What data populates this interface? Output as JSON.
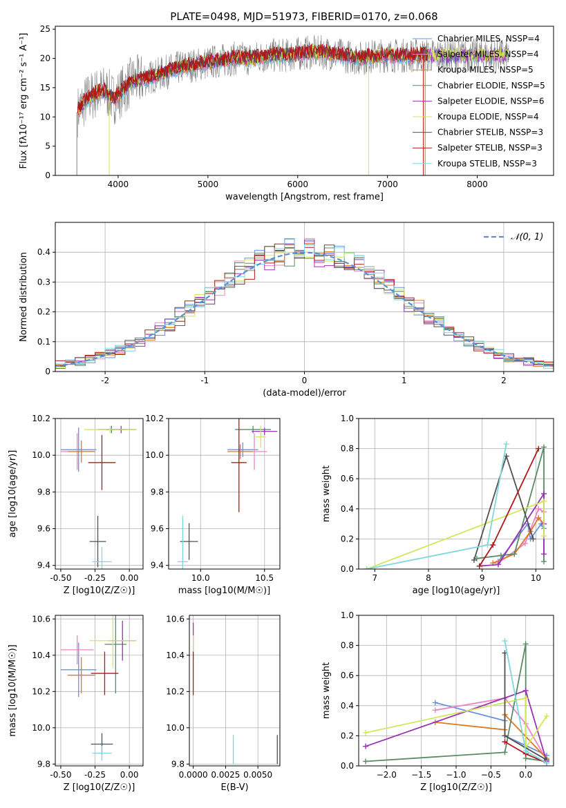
{
  "colors": {
    "chabrier_miles": "#6a8fe0",
    "salpeter_miles": "#ee82c8",
    "kroupa_miles": "#e07820",
    "chabrier_elodie": "#5a8a65",
    "salpeter_elodie": "#9a30b4",
    "kroupa_elodie": "#d2e65a",
    "chabrier_stelib": "#505050",
    "salpeter_stelib": "#b01818",
    "kroupa_stelib": "#7ed6e0",
    "gaussian": "#5b8ed6",
    "spectrum": "#808080"
  },
  "chart_data": [
    {
      "type": "line",
      "title": "PLATE=0498, MJD=51973, FIBERID=0170, z=0.068",
      "xlabel": "wavelength [Angstrom, rest frame]",
      "ylabel": "Flux [fλ10⁻¹⁷ erg cm⁻² s⁻¹ A⁻¹]",
      "xlim": [
        3300,
        8850
      ],
      "ylim": [
        0,
        25.5
      ],
      "xticks": [
        4000,
        5000,
        6000,
        7000,
        8000
      ],
      "yticks": [
        0,
        5,
        10,
        15,
        20,
        25
      ],
      "legend_position": "right",
      "series": [
        {
          "name": "Chabrier MILES, NSSP=4",
          "key": "chabrier_miles"
        },
        {
          "name": "Salpeter MILES, NSSP=4",
          "key": "salpeter_miles"
        },
        {
          "name": "Kroupa MILES, NSSP=5",
          "key": "kroupa_miles"
        },
        {
          "name": "Chabrier ELODIE, NSSP=5",
          "key": "chabrier_elodie"
        },
        {
          "name": "Salpeter ELODIE, NSSP=6",
          "key": "salpeter_elodie"
        },
        {
          "name": "Kroupa ELODIE, NSSP=4",
          "key": "kroupa_elodie"
        },
        {
          "name": "Chabrier STELIB, NSSP=3",
          "key": "chabrier_stelib"
        },
        {
          "name": "Salpeter STELIB, NSSP=3",
          "key": "salpeter_stelib"
        },
        {
          "name": "Kroupa STELIB, NSSP=3",
          "key": "kroupa_stelib"
        }
      ],
      "continuum": {
        "x": [
          3550,
          3650,
          3750,
          3850,
          3950,
          4050,
          4150,
          4300,
          4500,
          4700,
          4900,
          5100,
          5300,
          5500,
          5700,
          5900,
          6100,
          6300,
          6500,
          6700,
          6900,
          7100,
          7300,
          7500
        ],
        "y": [
          11,
          13,
          14,
          14.5,
          13,
          14.5,
          16,
          16.5,
          17.5,
          18.5,
          19,
          19.5,
          20,
          20,
          20.5,
          20.5,
          21,
          21,
          20.5,
          20,
          20.5,
          20.5,
          20.5,
          20.5
        ]
      }
    },
    {
      "type": "histogram",
      "xlabel": "(data-model)/error",
      "ylabel": "Normed distribution",
      "xlim": [
        -2.5,
        2.5
      ],
      "ylim": [
        0,
        0.5
      ],
      "xticks": [
        -2,
        -1,
        0,
        1,
        2
      ],
      "yticks": [
        0.0,
        0.1,
        0.2,
        0.3,
        0.4
      ],
      "legend_label": "𝒩(0, 1)",
      "bin_width": 0.1
    },
    {
      "type": "errorbar",
      "xlabel": "Z [log10(Z/Z☉)]",
      "ylabel": "age  [log10(age/yr)]",
      "xlim": [
        -0.54,
        0.1
      ],
      "ylim": [
        9.38,
        10.2
      ],
      "xticks": [
        "-0.50",
        "-0.25",
        "0.00"
      ],
      "yticks": [
        "9.4",
        "9.6",
        "9.8",
        "10.0",
        "10.2"
      ],
      "points": [
        {
          "key": "chabrier_miles",
          "x": -0.37,
          "xerr": 0.13,
          "y": 10.03,
          "yerr": 0.12
        },
        {
          "key": "salpeter_miles",
          "x": -0.38,
          "xerr": 0.12,
          "y": 10.02,
          "yerr": 0.1
        },
        {
          "key": "kroupa_miles",
          "x": -0.35,
          "xerr": 0.1,
          "y": 10.02,
          "yerr": 0.06
        },
        {
          "key": "chabrier_elodie",
          "x": -0.13,
          "xerr": 0.1,
          "y": 10.14,
          "yerr": 0.02
        },
        {
          "key": "salpeter_elodie",
          "x": -0.06,
          "xerr": 0.11,
          "y": 10.14,
          "yerr": 0.02
        },
        {
          "key": "kroupa_elodie",
          "x": -0.14,
          "xerr": 0.19,
          "y": 10.14,
          "yerr": 0.02
        },
        {
          "key": "chabrier_stelib",
          "x": -0.23,
          "xerr": 0.06,
          "y": 9.53,
          "yerr": 0.14
        },
        {
          "key": "salpeter_stelib",
          "x": -0.2,
          "xerr": 0.1,
          "y": 9.96,
          "yerr": 0.15
        },
        {
          "key": "kroupa_stelib",
          "x": -0.2,
          "xerr": 0.07,
          "y": 9.42,
          "yerr": 0.08
        }
      ]
    },
    {
      "type": "errorbar",
      "xlabel": "mass [log10(M/M☉)]",
      "xlim": [
        9.75,
        10.62
      ],
      "ylim": [
        9.38,
        10.2
      ],
      "xticks": [
        "10.0",
        "10.5"
      ],
      "yticks": [
        "9.4",
        "9.6",
        "9.8",
        "10.0",
        "10.2"
      ],
      "points": [
        {
          "key": "chabrier_miles",
          "x": 10.33,
          "xerr": 0.12,
          "y": 10.03,
          "yerr": 0.04
        },
        {
          "key": "salpeter_miles",
          "x": 10.42,
          "xerr": 0.1,
          "y": 10.02,
          "yerr": 0.1
        },
        {
          "key": "kroupa_miles",
          "x": 10.31,
          "xerr": 0.1,
          "y": 10.02,
          "yerr": 0.04
        },
        {
          "key": "chabrier_elodie",
          "x": 10.41,
          "xerr": 0.14,
          "y": 10.14,
          "yerr": 0.02
        },
        {
          "key": "salpeter_elodie",
          "x": 10.5,
          "xerr": 0.1,
          "y": 10.13,
          "yerr": 0.02
        },
        {
          "key": "kroupa_elodie",
          "x": 10.47,
          "xerr": 0.04,
          "y": 10.1,
          "yerr": 0.06
        },
        {
          "key": "chabrier_stelib",
          "x": 9.91,
          "xerr": 0.07,
          "y": 9.53,
          "yerr": 0.1
        },
        {
          "key": "salpeter_stelib",
          "x": 10.3,
          "xerr": 0.06,
          "y": 9.96,
          "yerr": 0.27
        },
        {
          "key": "kroupa_stelib",
          "x": 9.86,
          "xerr": 0.04,
          "y": 9.42,
          "yerr": 0.25
        }
      ]
    },
    {
      "type": "line",
      "xlabel": "age  [log10(age/yr)]",
      "ylabel": "mass weight",
      "xlim": [
        6.7,
        10.33
      ],
      "ylim": [
        0,
        1.0
      ],
      "xticks": [
        "7",
        "8",
        "9",
        "10"
      ],
      "yticks": [
        "0.0",
        "0.2",
        "0.4",
        "0.6",
        "0.8",
        "1.0"
      ],
      "series": [
        {
          "key": "chabrier_miles",
          "x": [
            9.3,
            9.85,
            9.9,
            10.1,
            10.15
          ],
          "y": [
            0.05,
            0.3,
            0.2,
            0.3,
            0.27
          ]
        },
        {
          "key": "salpeter_miles",
          "x": [
            9.3,
            9.8,
            10.05,
            10.15
          ],
          "y": [
            0.04,
            0.17,
            0.4,
            0.38
          ]
        },
        {
          "key": "kroupa_miles",
          "x": [
            9.2,
            9.6,
            9.9,
            10.05,
            10.15
          ],
          "y": [
            0.04,
            0.1,
            0.25,
            0.34,
            0.3
          ]
        },
        {
          "key": "chabrier_elodie",
          "x": [
            8.9,
            9.35,
            9.6,
            10.15,
            10.15
          ],
          "y": [
            0.07,
            0.09,
            0.1,
            0.81,
            0.05
          ]
        },
        {
          "key": "salpeter_elodie",
          "x": [
            8.95,
            9.3,
            10.15,
            10.15,
            10.15
          ],
          "y": [
            0.02,
            0.03,
            0.5,
            0.3,
            0.1
          ]
        },
        {
          "key": "kroupa_elodie",
          "x": [
            6.85,
            10.15,
            10.15
          ],
          "y": [
            0.0,
            0.45,
            0.22
          ]
        },
        {
          "key": "chabrier_stelib",
          "x": [
            8.85,
            9.45,
            9.95
          ],
          "y": [
            0.06,
            0.75,
            0.2
          ]
        },
        {
          "key": "salpeter_stelib",
          "x": [
            8.95,
            9.2,
            10.05
          ],
          "y": [
            0.02,
            0.16,
            0.8
          ]
        },
        {
          "key": "kroupa_stelib",
          "x": [
            6.85,
            9.1,
            9.45
          ],
          "y": [
            0.0,
            0.16,
            0.83
          ]
        }
      ]
    },
    {
      "type": "errorbar",
      "xlabel": "Z [log10(Z/Z☉)]",
      "ylabel": "mass [log10(M/M☉)]",
      "xlim": [
        -0.54,
        0.1
      ],
      "ylim": [
        9.79,
        10.62
      ],
      "xticks": [
        "-0.50",
        "-0.25",
        "0.00"
      ],
      "yticks": [
        "9.8",
        "10.0",
        "10.2",
        "10.4",
        "10.6"
      ],
      "points": [
        {
          "key": "chabrier_miles",
          "x": -0.37,
          "xerr": 0.13,
          "y": 10.32,
          "yerr": 0.15
        },
        {
          "key": "salpeter_miles",
          "x": -0.38,
          "xerr": 0.12,
          "y": 10.43,
          "yerr": 0.08
        },
        {
          "key": "kroupa_miles",
          "x": -0.35,
          "xerr": 0.1,
          "y": 10.29,
          "yerr": 0.1
        },
        {
          "key": "chabrier_elodie",
          "x": -0.1,
          "xerr": 0.08,
          "y": 10.46,
          "yerr": 0.27
        },
        {
          "key": "salpeter_elodie",
          "x": -0.05,
          "xerr": 0.1,
          "y": 10.48,
          "yerr": 0.11
        },
        {
          "key": "kroupa_elodie",
          "x": -0.12,
          "xerr": 0.17,
          "y": 10.48,
          "yerr": 0.15
        },
        {
          "key": "chabrier_stelib",
          "x": -0.2,
          "xerr": 0.08,
          "y": 9.91,
          "yerr": 0.06
        },
        {
          "key": "salpeter_stelib",
          "x": -0.18,
          "xerr": 0.1,
          "y": 10.3,
          "yerr": 0.12
        },
        {
          "key": "kroupa_stelib",
          "x": -0.2,
          "xerr": 0.07,
          "y": 9.86,
          "yerr": 0.04
        }
      ]
    },
    {
      "type": "errorbar",
      "xlabel": "E(B-V)",
      "xlim": [
        -0.0003,
        0.0067
      ],
      "ylim": [
        9.79,
        10.62
      ],
      "xticks": [
        "0.0000",
        "0.0025",
        "0.0050"
      ],
      "yticks": [
        "9.8",
        "10.0",
        "10.2",
        "10.4",
        "10.6"
      ],
      "points": [
        {
          "key": "salpeter_elodie",
          "x": 0.0,
          "xerr": 0.0,
          "y": 10.48,
          "yerr": 0.1
        },
        {
          "key": "kroupa_elodie",
          "x": 0.0,
          "xerr": 0.0,
          "y": 10.45,
          "yerr": 0.06
        },
        {
          "key": "salpeter_stelib",
          "x": 0.0,
          "xerr": 0.0,
          "y": 10.3,
          "yerr": 0.12
        },
        {
          "key": "kroupa_stelib",
          "x": 0.0031,
          "xerr": 0.0,
          "y": 9.88,
          "yerr": 0.08
        },
        {
          "key": "chabrier_stelib",
          "x": 0.0065,
          "xerr": 0.0,
          "y": 9.88,
          "yerr": 0.08
        }
      ]
    },
    {
      "type": "line",
      "xlabel": "Z [log10(Z/Z☉)]",
      "ylabel": "mass weight",
      "xlim": [
        -2.4,
        0.4
      ],
      "ylim": [
        0,
        1.0
      ],
      "xticks": [
        "−2.0",
        "−1.5",
        "−1.0",
        "−0.5",
        "0.0"
      ],
      "yticks": [
        "0.0",
        "0.2",
        "0.4",
        "0.6",
        "0.8",
        "1.0"
      ],
      "series": [
        {
          "key": "chabrier_miles",
          "x": [
            -1.3,
            -0.3,
            -0.3,
            0.3
          ],
          "y": [
            0.42,
            0.3,
            0.2,
            0.07
          ]
        },
        {
          "key": "salpeter_miles",
          "x": [
            -1.3,
            -0.3,
            0.0,
            0.3
          ],
          "y": [
            0.37,
            0.45,
            0.28,
            0.04
          ]
        },
        {
          "key": "kroupa_miles",
          "x": [
            -1.3,
            -0.3,
            -0.3,
            0.3
          ],
          "y": [
            0.29,
            0.24,
            0.34,
            0.05
          ]
        },
        {
          "key": "chabrier_elodie",
          "x": [
            -2.3,
            -0.3,
            0.0,
            0.0,
            0.3
          ],
          "y": [
            0.03,
            0.09,
            0.81,
            0.05,
            0.03
          ]
        },
        {
          "key": "salpeter_elodie",
          "x": [
            -2.3,
            0.0,
            0.3
          ],
          "y": [
            0.13,
            0.5,
            0.03
          ]
        },
        {
          "key": "kroupa_elodie",
          "x": [
            -2.3,
            0.0,
            0.0,
            0.3
          ],
          "y": [
            0.22,
            0.45,
            0.12,
            0.33
          ]
        },
        {
          "key": "chabrier_stelib",
          "x": [
            -0.3,
            -0.3,
            0.3
          ],
          "y": [
            0.75,
            0.2,
            0.04
          ]
        },
        {
          "key": "salpeter_stelib",
          "x": [
            -0.3,
            0.0,
            0.3
          ],
          "y": [
            0.16,
            0.08,
            0.02
          ]
        },
        {
          "key": "kroupa_stelib",
          "x": [
            -0.3,
            0.0,
            0.3
          ],
          "y": [
            0.83,
            0.1,
            0.02
          ]
        }
      ]
    }
  ]
}
